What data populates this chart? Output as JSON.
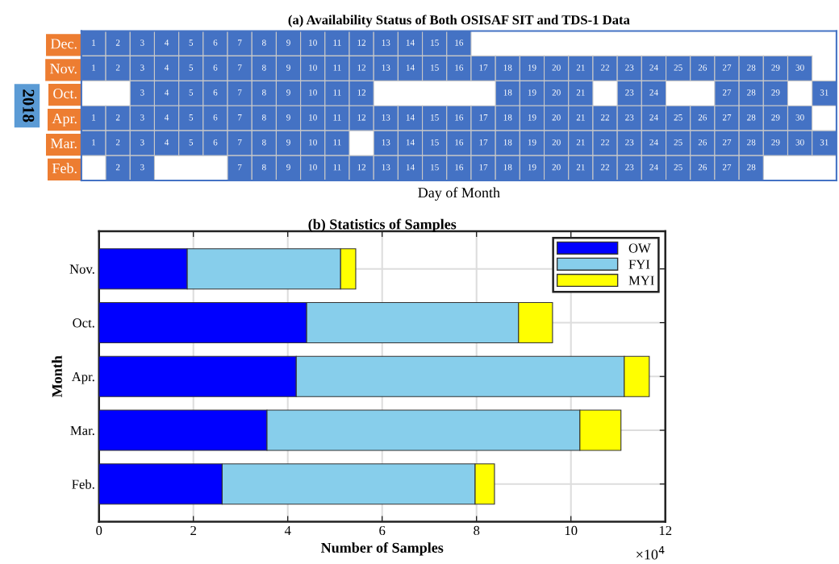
{
  "chart_data": [
    {
      "type": "heatmap",
      "title": "(a) Availability Status of Both OSISAF SIT and TDS-1 Data",
      "xlabel": "Day of Month",
      "ylabel": "2018",
      "categories": [
        null,
        null,
        null,
        null,
        null,
        null,
        null,
        null,
        null,
        null,
        null,
        null,
        null,
        null,
        null,
        null,
        null,
        null,
        null,
        null,
        null,
        null,
        null,
        null,
        null,
        null,
        null,
        null,
        null,
        null,
        null
      ],
      "y_categories": [
        "Dec.",
        "Nov.",
        "Oct.",
        "Apr.",
        "Mar.",
        "Feb."
      ],
      "color": "#4472c4",
      "data_labels": true,
      "cells": [
        [
          1,
          2,
          3,
          4,
          5,
          6,
          7,
          8,
          9,
          10,
          11,
          12,
          13,
          14,
          15,
          16,
          null,
          null,
          null,
          null,
          null,
          null,
          null,
          null,
          null,
          null,
          null,
          null,
          null,
          null,
          null
        ],
        [
          1,
          2,
          3,
          4,
          5,
          6,
          7,
          8,
          9,
          10,
          11,
          12,
          13,
          14,
          15,
          16,
          17,
          18,
          19,
          20,
          21,
          22,
          23,
          24,
          25,
          26,
          27,
          28,
          29,
          30,
          null
        ],
        [
          null,
          null,
          3,
          4,
          5,
          6,
          7,
          8,
          9,
          10,
          11,
          12,
          null,
          null,
          null,
          null,
          null,
          18,
          19,
          20,
          21,
          null,
          23,
          24,
          null,
          null,
          27,
          28,
          29,
          null,
          31
        ],
        [
          1,
          2,
          3,
          4,
          5,
          6,
          7,
          8,
          9,
          10,
          11,
          12,
          13,
          14,
          15,
          16,
          17,
          18,
          19,
          20,
          21,
          22,
          23,
          24,
          25,
          26,
          27,
          28,
          29,
          30,
          null
        ],
        [
          1,
          2,
          3,
          4,
          5,
          6,
          7,
          8,
          9,
          10,
          11,
          null,
          13,
          14,
          15,
          16,
          17,
          18,
          19,
          20,
          21,
          22,
          23,
          24,
          25,
          26,
          27,
          28,
          29,
          30,
          31
        ],
        [
          null,
          2,
          3,
          null,
          null,
          null,
          7,
          8,
          9,
          10,
          11,
          12,
          13,
          14,
          15,
          16,
          17,
          18,
          19,
          20,
          21,
          22,
          23,
          24,
          25,
          26,
          27,
          28,
          null,
          null,
          null
        ]
      ]
    },
    {
      "type": "bar",
      "orientation": "horizontal",
      "stacked": true,
      "title": "(b) Statistics of Samples",
      "xlabel": "Number of Samples",
      "ylabel": "Month",
      "categories": [
        "Nov.",
        "Oct.",
        "Apr.",
        "Mar.",
        "Feb."
      ],
      "xlim": [
        0,
        12
      ],
      "xticks": [
        0,
        2,
        4,
        6,
        8,
        10,
        12
      ],
      "grid": true,
      "legend": "top right",
      "annotations": [
        "×10$^{4}$"
      ],
      "series": [
        {
          "name": "OW",
          "color": "#0000ff",
          "values": [
            1.87,
            4.4,
            4.18,
            3.56,
            2.61
          ]
        },
        {
          "name": "FYI",
          "color": "#87ceeb",
          "values": [
            3.25,
            4.49,
            6.95,
            6.63,
            5.36
          ]
        },
        {
          "name": "MYI",
          "color": "#ffff00",
          "values": [
            0.32,
            0.72,
            0.53,
            0.87,
            0.41
          ]
        }
      ]
    }
  ]
}
